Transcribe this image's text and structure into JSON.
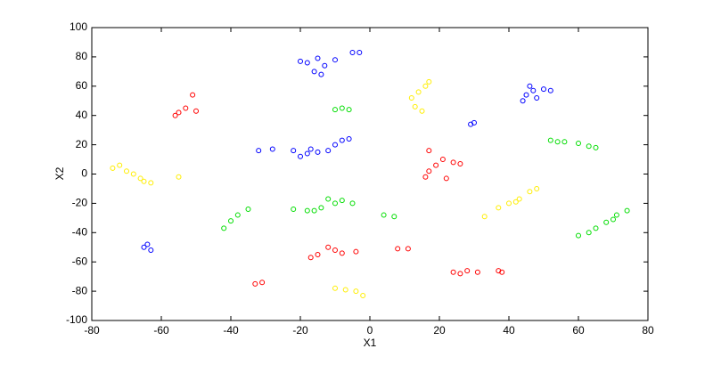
{
  "chart_data": {
    "type": "scatter",
    "xlabel": "X1",
    "ylabel": "X2",
    "xlim": [
      -80,
      80
    ],
    "ylim": [
      -100,
      100
    ],
    "xticks": [
      -80,
      -60,
      -40,
      -20,
      0,
      20,
      40,
      60,
      80
    ],
    "yticks": [
      -100,
      -80,
      -60,
      -40,
      -20,
      0,
      20,
      40,
      60,
      80,
      100
    ],
    "series": [
      {
        "color": "#0000ff",
        "x": [
          -20,
          -15,
          -13,
          -16,
          -10,
          -5,
          -3,
          -18,
          -14,
          47,
          50,
          45,
          48,
          52,
          44,
          46,
          29,
          30,
          -32,
          -28,
          -22,
          -18,
          -20,
          -15,
          -12,
          -10,
          -8,
          -6,
          -17,
          -64,
          -63,
          -65
        ],
        "values": [
          77,
          79,
          74,
          70,
          78,
          83,
          83,
          76,
          68,
          57,
          58,
          54,
          52,
          57,
          50,
          60,
          34,
          35,
          16,
          17,
          16,
          14,
          12,
          15,
          16,
          20,
          23,
          24,
          17,
          -48,
          -52,
          -50
        ]
      },
      {
        "color": "#ff0000",
        "x": [
          -51,
          -55,
          -53,
          -50,
          -56,
          17,
          21,
          24,
          19,
          26,
          17,
          16,
          22,
          -33,
          -31,
          -17,
          -12,
          -8,
          -4,
          -10,
          -15,
          8,
          11,
          24,
          28,
          31,
          26,
          37,
          38
        ],
        "values": [
          54,
          42,
          45,
          43,
          40,
          16,
          10,
          8,
          6,
          7,
          2,
          -2,
          -3,
          -75,
          -74,
          -57,
          -50,
          -54,
          -53,
          -52,
          -55,
          -51,
          -51,
          -67,
          -66,
          -67,
          -68,
          -66,
          -67
        ]
      },
      {
        "color": "#00dd00",
        "x": [
          -10,
          -8,
          -6,
          52,
          56,
          60,
          63,
          65,
          54,
          -42,
          -38,
          -35,
          -40,
          -22,
          -18,
          -14,
          -12,
          -8,
          -5,
          -16,
          -10,
          4,
          7,
          60,
          65,
          68,
          71,
          74,
          63,
          70
        ],
        "values": [
          44,
          45,
          44,
          23,
          22,
          21,
          19,
          18,
          22,
          -37,
          -28,
          -24,
          -32,
          -24,
          -25,
          -23,
          -17,
          -18,
          -20,
          -25,
          -20,
          -28,
          -29,
          -42,
          -37,
          -33,
          -28,
          -25,
          -40,
          -31
        ]
      },
      {
        "color": "#ffee00",
        "x": [
          12,
          14,
          16,
          17,
          13,
          15,
          -72,
          -70,
          -68,
          -66,
          -63,
          -74,
          -65,
          -55,
          33,
          37,
          40,
          43,
          46,
          48,
          42,
          -10,
          -7,
          -4,
          -2
        ],
        "values": [
          52,
          56,
          60,
          63,
          46,
          43,
          6,
          2,
          0,
          -3,
          -6,
          4,
          -5,
          -2,
          -29,
          -23,
          -20,
          -17,
          -12,
          -10,
          -19,
          -78,
          -79,
          -80,
          -83
        ]
      }
    ]
  }
}
